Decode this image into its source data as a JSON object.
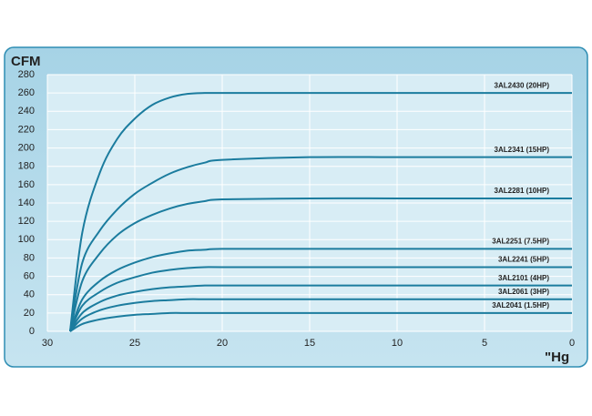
{
  "chart_data": {
    "type": "line",
    "xlabel": "\"Hg",
    "ylabel": "CFM",
    "x": [
      28.7,
      28,
      27,
      26,
      25,
      24,
      23,
      22,
      21,
      20,
      15,
      10,
      5,
      0
    ],
    "xlim": [
      30,
      0
    ],
    "xticks": [
      30,
      25,
      20,
      15,
      10,
      5,
      0
    ],
    "ylim": [
      0,
      280
    ],
    "yticks": [
      0,
      20,
      40,
      60,
      80,
      100,
      120,
      140,
      160,
      180,
      200,
      220,
      240,
      260,
      280
    ],
    "grid": true,
    "series": [
      {
        "name": "3AL2430 (20HP)",
        "color": "#1b7c9e",
        "values": [
          0,
          108,
          173,
          210,
          232,
          247,
          255,
          259,
          260,
          260,
          260,
          260,
          260,
          260
        ]
      },
      {
        "name": "3AL2341 (15HP)",
        "color": "#1b7c9e",
        "values": [
          0,
          75,
          110,
          133,
          150,
          162,
          172,
          179,
          184,
          187,
          190,
          190,
          190,
          190
        ]
      },
      {
        "name": "3AL2281 (10HP)",
        "color": "#1b7c9e",
        "values": [
          0,
          55,
          85,
          105,
          118,
          127,
          134,
          139,
          142,
          144,
          145,
          145,
          145,
          145
        ]
      },
      {
        "name": "3AL2251 (7.5HP)",
        "color": "#1b7c9e",
        "values": [
          0,
          35,
          55,
          67,
          75,
          81,
          85,
          88,
          89,
          90,
          90,
          90,
          90,
          90
        ]
      },
      {
        "name": "3AL2241 (5HP)",
        "color": "#1b7c9e",
        "values": [
          0,
          28,
          43,
          53,
          59,
          64,
          67,
          69,
          70,
          70,
          70,
          70,
          70,
          70
        ]
      },
      {
        "name": "3AL2101 (4HP)",
        "color": "#1b7c9e",
        "values": [
          0,
          20,
          32,
          39,
          43,
          46,
          48,
          49,
          50,
          50,
          50,
          50,
          50,
          50
        ]
      },
      {
        "name": "3AL2061 (3HP)",
        "color": "#1b7c9e",
        "values": [
          0,
          14,
          23,
          28,
          31,
          33,
          34,
          35,
          35,
          35,
          35,
          35,
          35,
          35
        ]
      },
      {
        "name": "3AL2041 (1.5HP)",
        "color": "#1b7c9e",
        "values": [
          0,
          8,
          13,
          16,
          18,
          19,
          20,
          20,
          20,
          20,
          20,
          20,
          20,
          20
        ]
      }
    ]
  }
}
